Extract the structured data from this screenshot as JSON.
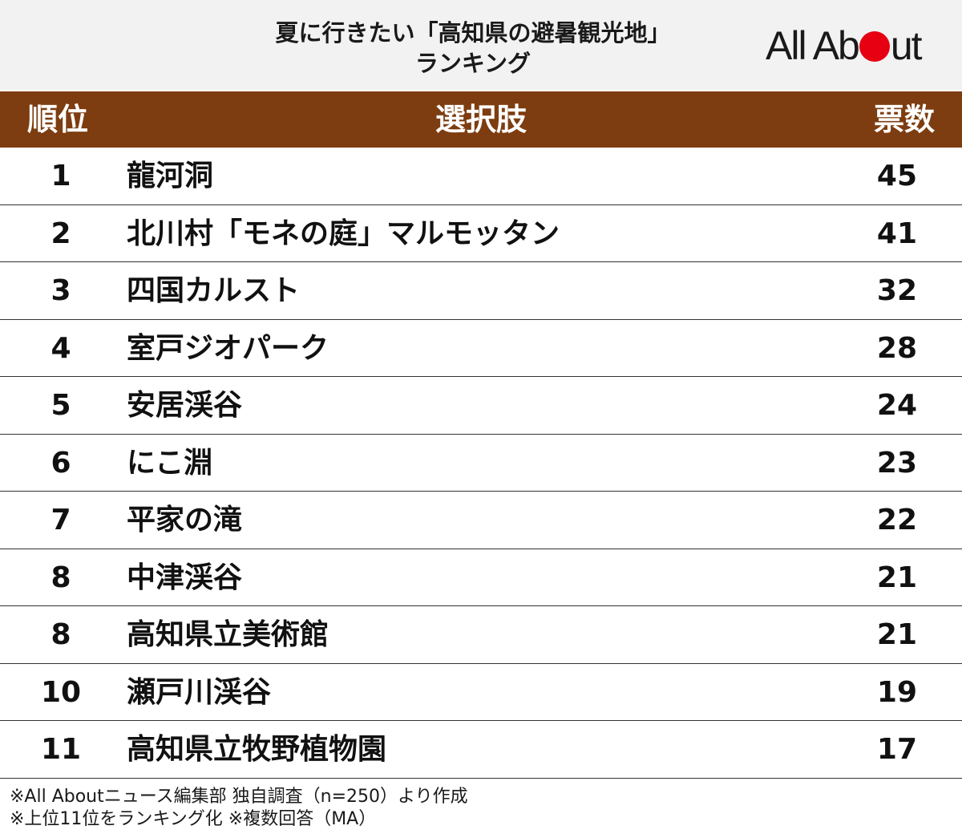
{
  "header": {
    "title_line1": "夏に行きたい「高知県の避暑観光地」",
    "title_line2": "ランキング",
    "logo_prefix": "All Ab",
    "logo_suffix": "ut",
    "logo_accent_color": "#e60012"
  },
  "table": {
    "header_color": "#7d3d10",
    "columns": {
      "rank": "順位",
      "choice": "選択肢",
      "votes": "票数"
    },
    "rows": [
      {
        "rank": "1",
        "name": "龍河洞",
        "votes": "45"
      },
      {
        "rank": "2",
        "name": "北川村「モネの庭」マルモッタン",
        "votes": "41"
      },
      {
        "rank": "3",
        "name": "四国カルスト",
        "votes": "32"
      },
      {
        "rank": "4",
        "name": "室戸ジオパーク",
        "votes": "28"
      },
      {
        "rank": "5",
        "name": "安居渓谷",
        "votes": "24"
      },
      {
        "rank": "6",
        "name": "にこ淵",
        "votes": "23"
      },
      {
        "rank": "7",
        "name": "平家の滝",
        "votes": "22"
      },
      {
        "rank": "8",
        "name": "中津渓谷",
        "votes": "21"
      },
      {
        "rank": "8",
        "name": "高知県立美術館",
        "votes": "21"
      },
      {
        "rank": "10",
        "name": "瀬戸川渓谷",
        "votes": "19"
      },
      {
        "rank": "11",
        "name": "高知県立牧野植物園",
        "votes": "17"
      }
    ]
  },
  "footer": {
    "note1": "※All Aboutニュース編集部 独自調査（n=250）より作成",
    "note2": "※上位11位をランキング化 ※複数回答（MA）"
  }
}
